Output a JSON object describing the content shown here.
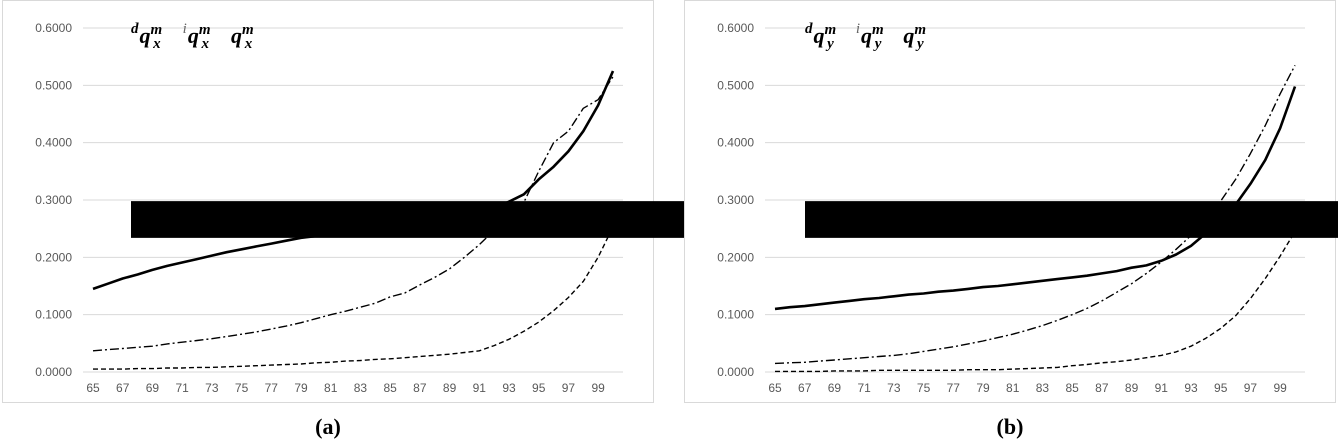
{
  "captions": [
    "(a)",
    "(b)"
  ],
  "chart_data": [
    {
      "type": "line",
      "ylim": [
        0,
        0.6
      ],
      "yticks": [
        "0.0000",
        "0.1000",
        "0.2000",
        "0.3000",
        "0.4000",
        "0.5000",
        "0.6000"
      ],
      "x": [
        65,
        66,
        67,
        68,
        69,
        70,
        71,
        72,
        73,
        74,
        75,
        76,
        77,
        78,
        79,
        80,
        81,
        82,
        83,
        84,
        85,
        86,
        87,
        88,
        89,
        90,
        91,
        92,
        93,
        94,
        95,
        96,
        97,
        98,
        99,
        100
      ],
      "xtick_labels": [
        "65",
        "67",
        "69",
        "71",
        "73",
        "75",
        "77",
        "79",
        "81",
        "83",
        "85",
        "87",
        "89",
        "91",
        "93",
        "95",
        "97",
        "99"
      ],
      "legend": [
        {
          "pre": "d",
          "base": "q",
          "sup": "m",
          "sub": "x",
          "style": "solid"
        },
        {
          "pre": "i",
          "base": "q",
          "sup": "m",
          "sub": "x",
          "style": "dashdot"
        },
        {
          "pre": "",
          "base": "q",
          "sup": "m",
          "sub": "x",
          "style": "dashed"
        }
      ],
      "series": [
        {
          "style": "solid",
          "values": [
            0.145,
            0.154,
            0.163,
            0.17,
            0.178,
            0.185,
            0.191,
            0.197,
            0.203,
            0.209,
            0.214,
            0.219,
            0.224,
            0.229,
            0.234,
            0.237,
            0.242,
            0.245,
            0.249,
            0.252,
            0.256,
            0.26,
            0.262,
            0.265,
            0.27,
            0.273,
            0.276,
            0.286,
            0.297,
            0.31,
            0.336,
            0.358,
            0.385,
            0.42,
            0.465,
            0.525
          ]
        },
        {
          "style": "dashdot",
          "values": [
            0.037,
            0.039,
            0.041,
            0.043,
            0.045,
            0.049,
            0.052,
            0.055,
            0.058,
            0.062,
            0.066,
            0.07,
            0.075,
            0.08,
            0.086,
            0.093,
            0.1,
            0.106,
            0.113,
            0.12,
            0.131,
            0.138,
            0.152,
            0.165,
            0.18,
            0.2,
            0.222,
            0.247,
            0.276,
            0.296,
            0.35,
            0.4,
            0.42,
            0.46,
            0.475,
            0.515
          ]
        },
        {
          "style": "dashed",
          "values": [
            0.005,
            0.005,
            0.005,
            0.006,
            0.006,
            0.007,
            0.007,
            0.008,
            0.008,
            0.009,
            0.01,
            0.011,
            0.012,
            0.013,
            0.014,
            0.016,
            0.017,
            0.019,
            0.02,
            0.022,
            0.023,
            0.025,
            0.027,
            0.029,
            0.031,
            0.034,
            0.037,
            0.046,
            0.057,
            0.071,
            0.087,
            0.107,
            0.13,
            0.158,
            0.2,
            0.253
          ]
        }
      ]
    },
    {
      "type": "line",
      "ylim": [
        0,
        0.6
      ],
      "yticks": [
        "0.0000",
        "0.1000",
        "0.2000",
        "0.3000",
        "0.4000",
        "0.5000",
        "0.6000"
      ],
      "x": [
        65,
        66,
        67,
        68,
        69,
        70,
        71,
        72,
        73,
        74,
        75,
        76,
        77,
        78,
        79,
        80,
        81,
        82,
        83,
        84,
        85,
        86,
        87,
        88,
        89,
        90,
        91,
        92,
        93,
        94,
        95,
        96,
        97,
        98,
        99,
        100
      ],
      "xtick_labels": [
        "65",
        "67",
        "69",
        "71",
        "73",
        "75",
        "77",
        "79",
        "81",
        "83",
        "85",
        "87",
        "89",
        "91",
        "93",
        "95",
        "97",
        "99"
      ],
      "legend": [
        {
          "pre": "d",
          "base": "q",
          "sup": "m",
          "sub": "y",
          "style": "solid"
        },
        {
          "pre": "i",
          "base": "q",
          "sup": "m",
          "sub": "y",
          "style": "dashdot"
        },
        {
          "pre": "",
          "base": "q",
          "sup": "m",
          "sub": "y",
          "style": "dashed"
        }
      ],
      "series": [
        {
          "style": "solid",
          "values": [
            0.11,
            0.113,
            0.115,
            0.118,
            0.121,
            0.124,
            0.127,
            0.129,
            0.132,
            0.135,
            0.137,
            0.14,
            0.142,
            0.145,
            0.148,
            0.15,
            0.153,
            0.156,
            0.159,
            0.162,
            0.165,
            0.168,
            0.172,
            0.176,
            0.182,
            0.186,
            0.194,
            0.205,
            0.22,
            0.242,
            0.264,
            0.292,
            0.328,
            0.37,
            0.425,
            0.498
          ]
        },
        {
          "style": "dashdot",
          "values": [
            0.015,
            0.016,
            0.017,
            0.019,
            0.021,
            0.023,
            0.025,
            0.027,
            0.029,
            0.032,
            0.036,
            0.04,
            0.044,
            0.049,
            0.054,
            0.06,
            0.066,
            0.073,
            0.081,
            0.09,
            0.1,
            0.111,
            0.124,
            0.139,
            0.154,
            0.172,
            0.192,
            0.214,
            0.238,
            0.266,
            0.298,
            0.336,
            0.381,
            0.43,
            0.485,
            0.535
          ]
        },
        {
          "style": "dashed",
          "values": [
            0.001,
            0.001,
            0.001,
            0.001,
            0.002,
            0.002,
            0.002,
            0.003,
            0.003,
            0.003,
            0.003,
            0.003,
            0.003,
            0.004,
            0.004,
            0.004,
            0.005,
            0.006,
            0.007,
            0.008,
            0.011,
            0.013,
            0.016,
            0.018,
            0.021,
            0.025,
            0.029,
            0.035,
            0.045,
            0.059,
            0.076,
            0.098,
            0.128,
            0.163,
            0.202,
            0.245
          ]
        }
      ]
    }
  ]
}
